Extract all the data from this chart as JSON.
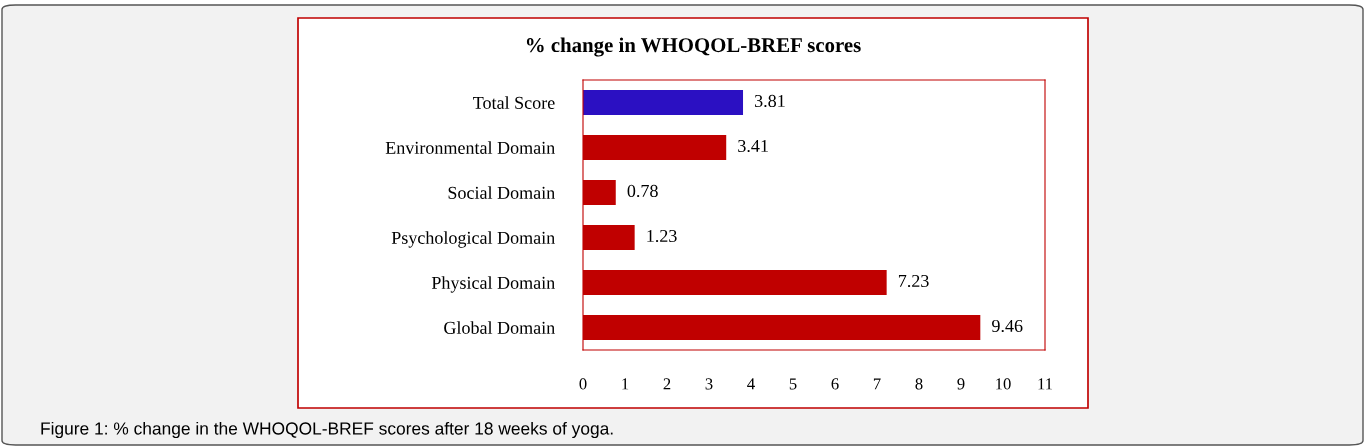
{
  "chart_data": {
    "type": "bar",
    "orientation": "horizontal",
    "title": "% change in WHOQOL-BREF scores",
    "categories": [
      "Total Score",
      "Environmental Domain",
      "Social Domain",
      "Psychological Domain",
      "Physical Domain",
      "Global Domain"
    ],
    "values": [
      3.81,
      3.41,
      0.78,
      1.23,
      7.23,
      9.46
    ],
    "colors": [
      "#2b10c2",
      "#c00000",
      "#c00000",
      "#c00000",
      "#c00000",
      "#c00000"
    ],
    "xlim": [
      0,
      11
    ],
    "xticks": [
      0,
      1,
      2,
      3,
      4,
      5,
      6,
      7,
      8,
      9,
      10,
      11
    ],
    "data_labels": true,
    "grid": false,
    "legend": false,
    "annotations": [
      "Figure 1: % change in the WHOQOL-BREF scores after 18 weeks of yoga."
    ]
  }
}
